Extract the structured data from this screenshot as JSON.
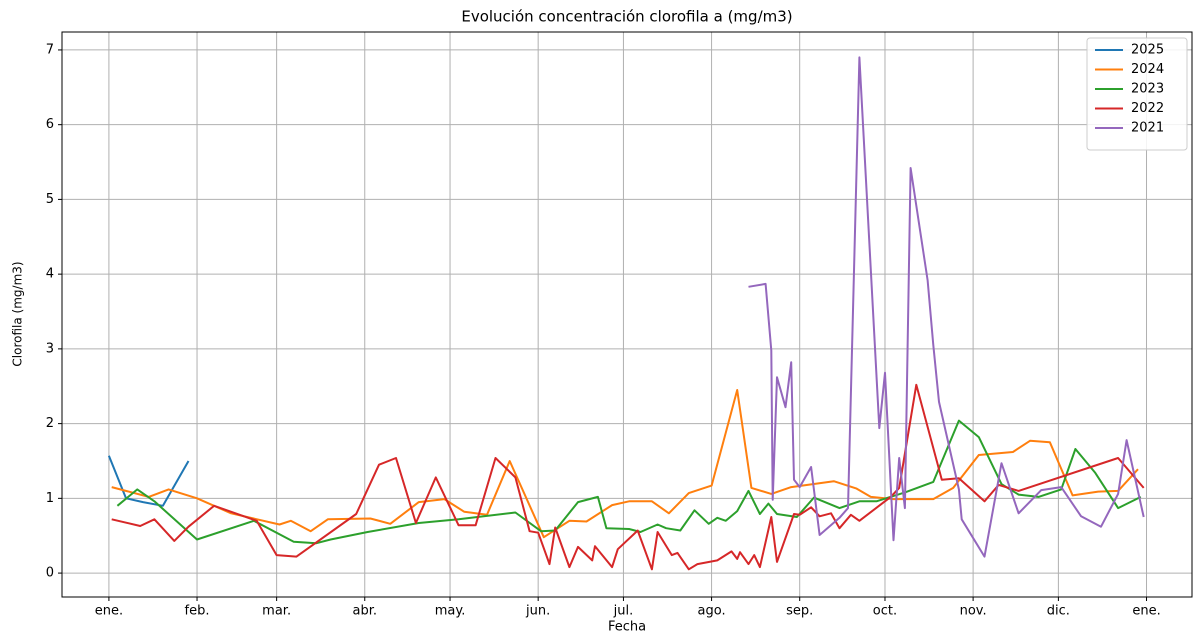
{
  "chart_data": {
    "type": "line",
    "title": "Evolución concentración clorofila a (mg/m3)",
    "xlabel": "Fecha",
    "ylabel": "Clorofila (mg/m3)",
    "xlim": [
      -16.5,
      381
    ],
    "ylim": [
      -0.32,
      7.24
    ],
    "xticks": [
      {
        "value": 0,
        "label": "ene."
      },
      {
        "value": 31,
        "label": "feb."
      },
      {
        "value": 59,
        "label": "mar."
      },
      {
        "value": 90,
        "label": "abr."
      },
      {
        "value": 120,
        "label": "may."
      },
      {
        "value": 151,
        "label": "jun."
      },
      {
        "value": 181,
        "label": "jul."
      },
      {
        "value": 212,
        "label": "ago."
      },
      {
        "value": 243,
        "label": "sep."
      },
      {
        "value": 273,
        "label": "oct."
      },
      {
        "value": 304,
        "label": "nov."
      },
      {
        "value": 334,
        "label": "dic."
      },
      {
        "value": 365,
        "label": "ene."
      }
    ],
    "yticks": [
      0,
      1,
      2,
      3,
      4,
      5,
      6,
      7
    ],
    "grid": true,
    "legend": "upper right",
    "series": [
      {
        "name": "2025",
        "color": "#1f77b4",
        "x": [
          0,
          6,
          12,
          19,
          28
        ],
        "values": [
          1.57,
          1.0,
          0.95,
          0.9,
          1.5
        ]
      },
      {
        "name": "2024",
        "color": "#ff7f0e",
        "x": [
          1,
          14,
          21,
          31,
          43,
          60,
          64,
          71,
          77,
          92,
          99,
          109,
          118,
          125,
          133,
          141,
          153,
          162,
          168,
          177,
          183,
          191,
          197,
          204,
          212,
          221,
          226,
          233,
          240,
          255,
          263,
          268,
          276,
          290,
          297,
          306,
          318,
          324,
          331,
          339,
          348,
          355,
          362
        ],
        "values": [
          1.15,
          1.02,
          1.12,
          1.0,
          0.8,
          0.65,
          0.7,
          0.56,
          0.72,
          0.73,
          0.66,
          0.95,
          0.99,
          0.82,
          0.78,
          1.5,
          0.48,
          0.7,
          0.69,
          0.91,
          0.96,
          0.96,
          0.8,
          1.07,
          1.17,
          2.45,
          1.14,
          1.06,
          1.15,
          1.23,
          1.13,
          1.02,
          0.99,
          0.99,
          1.14,
          1.58,
          1.62,
          1.77,
          1.75,
          1.04,
          1.09,
          1.1,
          1.39
        ]
      },
      {
        "name": "2023",
        "color": "#2ca02c",
        "x": [
          3,
          10,
          16,
          31,
          51,
          65,
          73,
          78,
          91,
          109,
          123,
          143,
          152,
          157,
          165,
          172,
          175,
          183,
          187,
          193,
          196,
          201,
          206,
          211,
          214,
          217,
          221,
          225,
          229,
          232,
          235,
          242,
          248,
          257,
          264,
          270,
          280,
          290,
          299,
          306,
          314,
          320,
          327,
          335,
          340,
          347,
          355,
          363
        ],
        "values": [
          0.9,
          1.12,
          0.96,
          0.45,
          0.7,
          0.42,
          0.4,
          0.45,
          0.55,
          0.67,
          0.72,
          0.81,
          0.56,
          0.57,
          0.95,
          1.02,
          0.6,
          0.59,
          0.55,
          0.65,
          0.6,
          0.57,
          0.84,
          0.66,
          0.74,
          0.7,
          0.83,
          1.1,
          0.79,
          0.93,
          0.79,
          0.75,
          1.01,
          0.87,
          0.96,
          0.96,
          1.08,
          1.22,
          2.04,
          1.82,
          1.19,
          1.05,
          1.02,
          1.12,
          1.66,
          1.34,
          0.87,
          1.02
        ]
      },
      {
        "name": "2022",
        "color": "#d62728",
        "x": [
          1,
          11,
          16,
          23,
          28,
          37,
          52,
          59,
          66,
          87,
          95,
          101,
          108,
          115,
          123,
          129,
          136,
          143,
          148,
          151,
          155,
          157,
          162,
          165,
          170,
          171,
          177,
          179,
          186,
          191,
          193,
          198,
          200,
          204,
          207,
          214,
          219,
          221,
          222,
          225,
          227,
          229,
          233,
          235,
          241,
          243,
          247,
          250,
          254,
          257,
          261,
          264,
          275,
          278,
          284,
          293,
          299,
          308,
          313,
          320,
          355,
          364
        ],
        "values": [
          0.72,
          0.63,
          0.72,
          0.43,
          0.62,
          0.9,
          0.7,
          0.24,
          0.22,
          0.79,
          1.45,
          1.54,
          0.67,
          1.28,
          0.64,
          0.64,
          1.54,
          1.28,
          0.56,
          0.54,
          0.12,
          0.61,
          0.08,
          0.35,
          0.17,
          0.36,
          0.08,
          0.32,
          0.57,
          0.05,
          0.55,
          0.24,
          0.27,
          0.05,
          0.12,
          0.17,
          0.29,
          0.19,
          0.28,
          0.12,
          0.24,
          0.08,
          0.75,
          0.15,
          0.79,
          0.78,
          0.88,
          0.76,
          0.8,
          0.6,
          0.78,
          0.7,
          1.02,
          1.14,
          2.52,
          1.25,
          1.27,
          0.96,
          1.18,
          1.1,
          1.54,
          1.14
        ]
      },
      {
        "name": "2021",
        "color": "#9467bd",
        "x": [
          225,
          231,
          233,
          233.5,
          235,
          238,
          240,
          241,
          243,
          247,
          250,
          257,
          260,
          264,
          271,
          273,
          276,
          278,
          280,
          282,
          288,
          290,
          292,
          299,
          300,
          308,
          314,
          320,
          328,
          335,
          342,
          349,
          355,
          358,
          364
        ],
        "values": [
          3.83,
          3.87,
          2.98,
          0.98,
          2.62,
          2.22,
          2.82,
          1.25,
          1.15,
          1.42,
          0.51,
          0.74,
          0.87,
          6.9,
          1.94,
          2.68,
          0.44,
          1.54,
          0.87,
          5.42,
          3.92,
          3.05,
          2.29,
          1.12,
          0.72,
          0.22,
          1.47,
          0.8,
          1.11,
          1.15,
          0.76,
          0.62,
          1.06,
          1.78,
          0.75
        ]
      }
    ]
  }
}
